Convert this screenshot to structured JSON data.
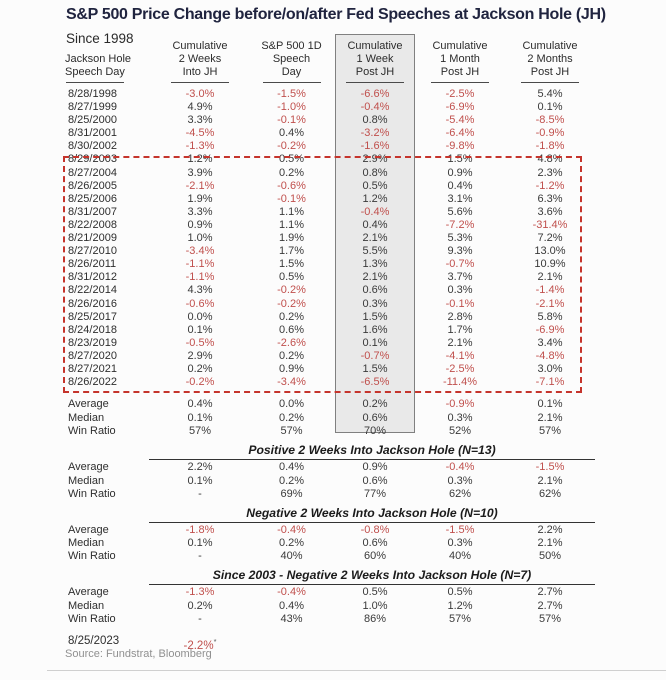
{
  "colors": {
    "negative": "#c0504d",
    "text": "#3a3a3a",
    "title": "#20243f",
    "dash_box": "#c5342c",
    "highlight_fill": "#e9e9e9",
    "highlight_border": "#808080",
    "muted": "#909090"
  },
  "chart_data": {
    "type": "table",
    "title": "S&P 500 Price Change before/on/after Fed Speeches at Jackson Hole (JH)",
    "subtitle": "Since 1998",
    "source": "Source: Fundstrat, Bloomberg",
    "columns": [
      [
        "Jackson Hole",
        "Speech Day"
      ],
      [
        "Cumulative",
        "2 Weeks",
        "Into JH"
      ],
      [
        "S&P 500 1D",
        "Speech",
        "Day"
      ],
      [
        "Cumulative",
        "1 Week",
        "Post JH"
      ],
      [
        "Cumulative",
        "1 Month",
        "Post JH"
      ],
      [
        "Cumulative",
        "2 Months",
        "Post JH"
      ]
    ],
    "rows": [
      [
        "8/28/1998",
        "-3.0%",
        "-1.5%",
        "-6.6%",
        "-2.5%",
        "5.4%"
      ],
      [
        "8/27/1999",
        "4.9%",
        "-1.0%",
        "-0.4%",
        "-6.9%",
        "0.1%"
      ],
      [
        "8/25/2000",
        "3.3%",
        "-0.1%",
        "0.8%",
        "-5.4%",
        "-8.5%"
      ],
      [
        "8/31/2001",
        "-4.5%",
        "0.4%",
        "-3.2%",
        "-6.4%",
        "-0.9%"
      ],
      [
        "8/30/2002",
        "-1.3%",
        "-0.2%",
        "-1.6%",
        "-9.8%",
        "-1.8%"
      ],
      [
        "8/29/2003",
        "1.2%",
        "0.5%",
        "2.9%",
        "1.5%",
        "4.8%"
      ],
      [
        "8/27/2004",
        "3.9%",
        "0.2%",
        "0.8%",
        "0.9%",
        "2.3%"
      ],
      [
        "8/26/2005",
        "-2.1%",
        "-0.6%",
        "0.5%",
        "0.4%",
        "-1.2%"
      ],
      [
        "8/25/2006",
        "1.9%",
        "-0.1%",
        "1.2%",
        "3.1%",
        "6.3%"
      ],
      [
        "8/31/2007",
        "3.3%",
        "1.1%",
        "-0.4%",
        "5.6%",
        "3.6%"
      ],
      [
        "8/22/2008",
        "0.9%",
        "1.1%",
        "0.4%",
        "-7.2%",
        "-31.4%"
      ],
      [
        "8/21/2009",
        "1.0%",
        "1.9%",
        "2.1%",
        "5.3%",
        "7.2%"
      ],
      [
        "8/27/2010",
        "-3.4%",
        "1.7%",
        "5.5%",
        "9.3%",
        "13.0%"
      ],
      [
        "8/26/2011",
        "-1.1%",
        "1.5%",
        "1.3%",
        "-0.7%",
        "10.9%"
      ],
      [
        "8/31/2012",
        "-1.1%",
        "0.5%",
        "2.1%",
        "3.7%",
        "2.1%"
      ],
      [
        "8/22/2014",
        "4.3%",
        "-0.2%",
        "0.6%",
        "0.3%",
        "-1.4%"
      ],
      [
        "8/26/2016",
        "-0.6%",
        "-0.2%",
        "0.3%",
        "-0.1%",
        "-2.1%"
      ],
      [
        "8/25/2017",
        "0.0%",
        "0.2%",
        "1.5%",
        "2.8%",
        "5.8%"
      ],
      [
        "8/24/2018",
        "0.1%",
        "0.6%",
        "1.6%",
        "1.7%",
        "-6.9%"
      ],
      [
        "8/23/2019",
        "-0.5%",
        "-2.6%",
        "0.1%",
        "2.1%",
        "3.4%"
      ],
      [
        "8/27/2020",
        "2.9%",
        "0.2%",
        "-0.7%",
        "-4.1%",
        "-4.8%"
      ],
      [
        "8/27/2021",
        "0.2%",
        "0.9%",
        "1.5%",
        "-2.5%",
        "3.0%"
      ],
      [
        "8/26/2022",
        "-0.2%",
        "-3.4%",
        "-6.5%",
        "-11.4%",
        "-7.1%"
      ]
    ],
    "summary_rows": [
      [
        "Average",
        "0.4%",
        "0.0%",
        "0.2%",
        "-0.9%",
        "0.1%"
      ],
      [
        "Median",
        "0.1%",
        "0.2%",
        "0.6%",
        "0.3%",
        "2.1%"
      ],
      [
        "Win Ratio",
        "57%",
        "57%",
        "70%",
        "52%",
        "57%"
      ]
    ],
    "sections": [
      {
        "header": "Positive 2 Weeks Into Jackson Hole (N=13)",
        "rows": [
          [
            "Average",
            "2.2%",
            "0.4%",
            "0.9%",
            "-0.4%",
            "-1.5%"
          ],
          [
            "Median",
            "0.1%",
            "0.2%",
            "0.6%",
            "0.3%",
            "2.1%"
          ],
          [
            "Win Ratio",
            "-",
            "69%",
            "77%",
            "62%",
            "62%"
          ]
        ]
      },
      {
        "header": "Negative 2 Weeks Into Jackson Hole (N=10)",
        "rows": [
          [
            "Average",
            "-1.8%",
            "-0.4%",
            "-0.8%",
            "-1.5%",
            "2.2%"
          ],
          [
            "Median",
            "0.1%",
            "0.2%",
            "0.6%",
            "0.3%",
            "2.1%"
          ],
          [
            "Win Ratio",
            "-",
            "40%",
            "60%",
            "40%",
            "50%"
          ]
        ]
      },
      {
        "header": "Since 2003 - Negative 2 Weeks Into Jackson Hole (N=7)",
        "rows": [
          [
            "Average",
            "-1.3%",
            "-0.4%",
            "0.5%",
            "0.5%",
            "2.7%"
          ],
          [
            "Median",
            "0.2%",
            "0.4%",
            "1.0%",
            "1.2%",
            "2.7%"
          ],
          [
            "Win Ratio",
            "-",
            "43%",
            "86%",
            "57%",
            "57%"
          ]
        ]
      }
    ],
    "latest": {
      "date": "8/25/2023",
      "value": "-2.2%",
      "footnote_marker": "*"
    },
    "annotations": {
      "highlighted_column": "Cumulative 1 Week Post JH",
      "dashed_box_rows_from": "8/29/2003",
      "dashed_box_rows_to": "8/26/2022"
    }
  }
}
